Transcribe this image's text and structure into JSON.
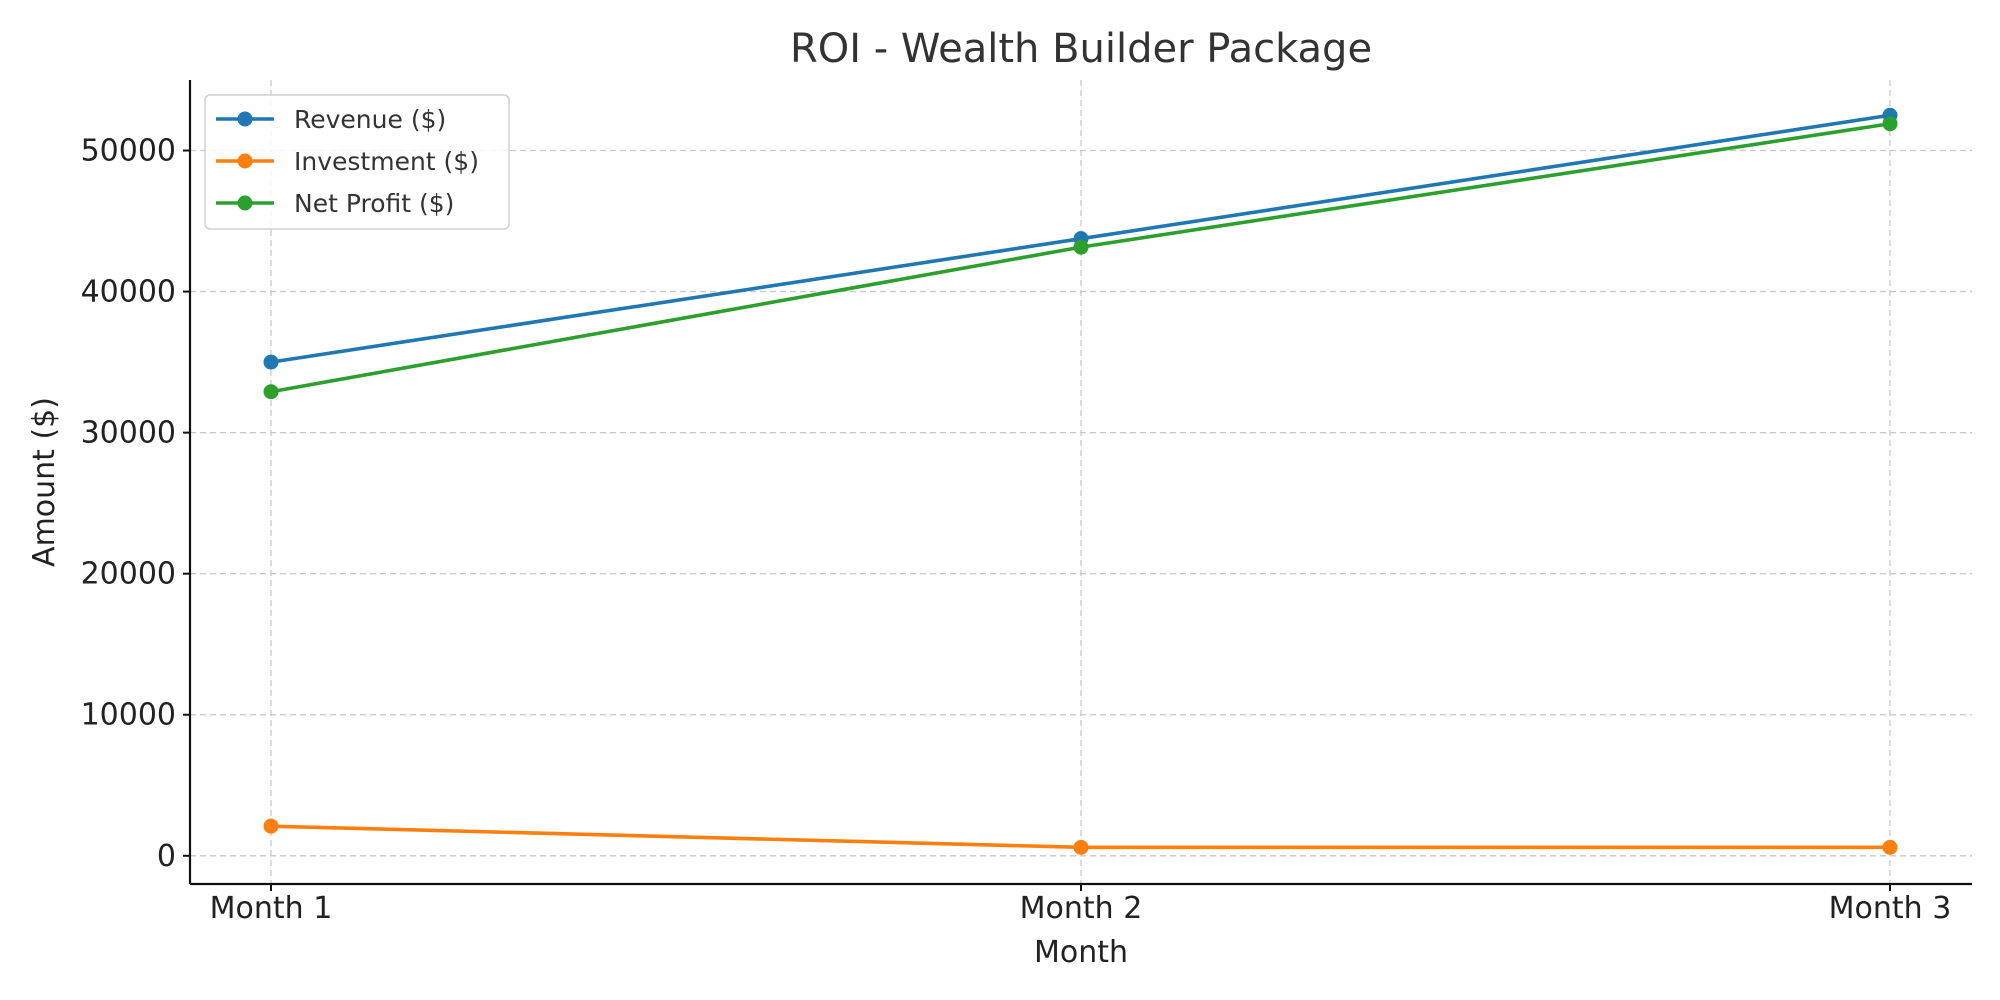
{
  "chart_data": {
    "type": "line",
    "title": "ROI - Wealth Builder Package",
    "xlabel": "Month",
    "ylabel": "Amount ($)",
    "categories": [
      "Month 1",
      "Month 2",
      "Month 3"
    ],
    "ylim": [
      -2000,
      55000
    ],
    "yticks": [
      0,
      10000,
      20000,
      30000,
      40000,
      50000
    ],
    "grid": true,
    "legend_position": "top-left",
    "series": [
      {
        "name": "Revenue ($)",
        "color": "#1f77b4",
        "values": [
          35000,
          43750,
          52500
        ]
      },
      {
        "name": "Investment ($)",
        "color": "#ff7f0e",
        "values": [
          2100,
          600,
          600
        ]
      },
      {
        "name": "Net Profit ($)",
        "color": "#2ca02c",
        "values": [
          32900,
          43150,
          51900
        ]
      }
    ]
  }
}
